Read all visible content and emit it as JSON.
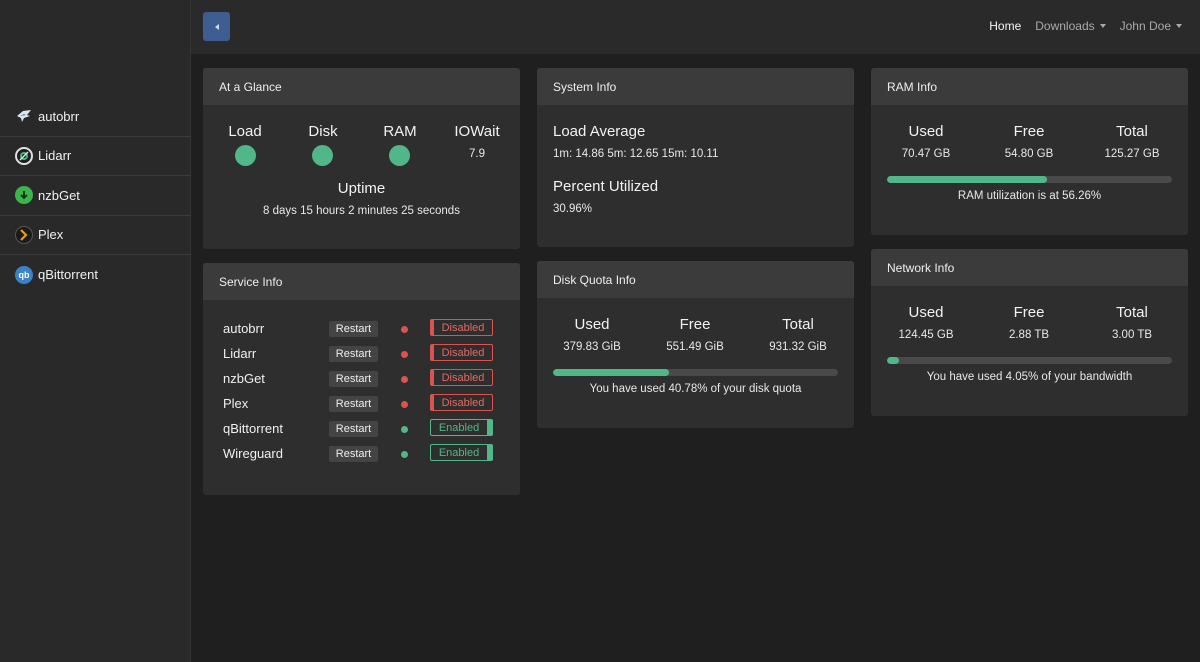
{
  "sidebar": {
    "items": [
      {
        "label": "autobrr",
        "icon": "autobrr-icon"
      },
      {
        "label": "Lidarr",
        "icon": "lidarr-icon"
      },
      {
        "label": "nzbGet",
        "icon": "nzbget-icon"
      },
      {
        "label": "Plex",
        "icon": "plex-icon"
      },
      {
        "label": "qBittorrent",
        "icon": "qbittorrent-icon",
        "icon_text": "qb"
      }
    ]
  },
  "nav": {
    "home": "Home",
    "downloads": "Downloads",
    "user": "John Doe"
  },
  "glance": {
    "title": "At a Glance",
    "load_label": "Load",
    "disk_label": "Disk",
    "ram_label": "RAM",
    "iowait_label": "IOWait",
    "iowait_value": "7.9",
    "uptime_label": "Uptime",
    "uptime_value": "8 days 15 hours 2 minutes 25 seconds"
  },
  "system": {
    "title": "System Info",
    "load_avg_label": "Load Average",
    "load_avg_value": "1m: 14.86 5m: 12.65 15m: 10.11",
    "percent_label": "Percent Utilized",
    "percent_value": "30.96%"
  },
  "ram": {
    "title": "RAM Info",
    "used_label": "Used",
    "free_label": "Free",
    "total_label": "Total",
    "used": "70.47 GB",
    "free": "54.80 GB",
    "total": "125.27 GB",
    "utilization_fraction": 0.5626,
    "note": "RAM utilization is at 56.26%"
  },
  "network": {
    "title": "Network Info",
    "used_label": "Used",
    "free_label": "Free",
    "total_label": "Total",
    "used": "124.45 GB",
    "free": "2.88 TB",
    "total": "3.00 TB",
    "utilization_fraction": 0.0405,
    "note": "You have used 4.05% of your bandwidth"
  },
  "disk": {
    "title": "Disk Quota Info",
    "used_label": "Used",
    "free_label": "Free",
    "total_label": "Total",
    "used": "379.83 GiB",
    "free": "551.49 GiB",
    "total": "931.32 GiB",
    "utilization_fraction": 0.4078,
    "note": "You have used 40.78% of your disk quota"
  },
  "services": {
    "title": "Service Info",
    "restart_label": "Restart",
    "rows": [
      {
        "name": "autobrr",
        "status": "Disabled"
      },
      {
        "name": "Lidarr",
        "status": "Disabled"
      },
      {
        "name": "nzbGet",
        "status": "Disabled"
      },
      {
        "name": "Plex",
        "status": "Disabled"
      },
      {
        "name": "qBittorrent",
        "status": "Enabled"
      },
      {
        "name": "Wireguard",
        "status": "Enabled"
      }
    ]
  },
  "colors": {
    "accent_green": "#52b788",
    "danger_red": "#d9534f",
    "toggle_blue": "#3d5d93"
  }
}
